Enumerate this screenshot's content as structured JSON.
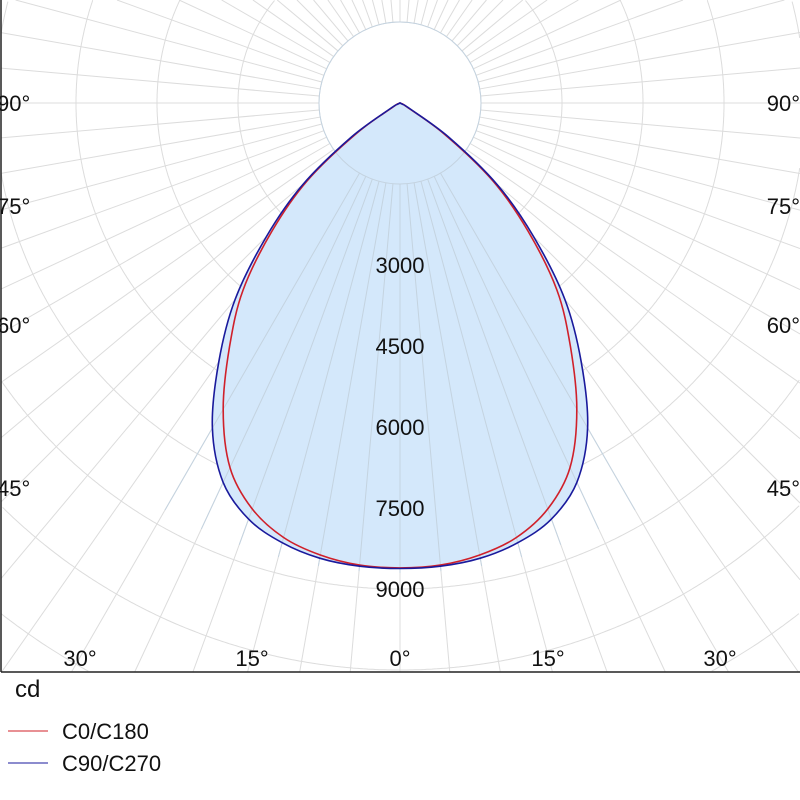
{
  "chart_data": {
    "type": "polar-line",
    "title": "",
    "unit_label": "cd",
    "radial_ticks": [
      3000,
      4500,
      6000,
      7500,
      9000
    ],
    "radial_step": 1500,
    "angle_labels_side": [
      {
        "angle": 90,
        "label": "90°"
      },
      {
        "angle": 75,
        "label": "75°"
      },
      {
        "angle": 60,
        "label": "60°"
      },
      {
        "angle": 45,
        "label": "45°"
      }
    ],
    "angle_labels_bottom": [
      {
        "angle": -30,
        "label": "30°"
      },
      {
        "angle": -15,
        "label": "15°"
      },
      {
        "angle": 0,
        "label": "0°"
      },
      {
        "angle": 15,
        "label": "15°"
      },
      {
        "angle": 30,
        "label": "30°"
      }
    ],
    "angles": [
      0,
      5,
      10,
      15,
      20,
      25,
      30,
      35,
      40,
      45,
      50,
      55,
      60,
      65,
      70,
      75,
      80,
      85,
      90
    ],
    "series": [
      {
        "name": "C0/C180",
        "color": "#d0202a",
        "values": [
          8610,
          8590,
          8500,
          8330,
          8000,
          7450,
          6550,
          5500,
          4520,
          3350,
          2250,
          1000,
          150,
          40,
          0,
          0,
          0,
          0,
          0
        ]
      },
      {
        "name": "C90/C270",
        "color": "#1a1a9c",
        "values": [
          8620,
          8610,
          8560,
          8430,
          8200,
          7750,
          6950,
          5850,
          4750,
          3500,
          2350,
          1100,
          200,
          60,
          0,
          0,
          0,
          0,
          0
        ]
      }
    ],
    "fill_color": "#d4e8fb",
    "grid_color": "#dcdcdc",
    "grid": true,
    "legend_position": "bottom-left"
  }
}
